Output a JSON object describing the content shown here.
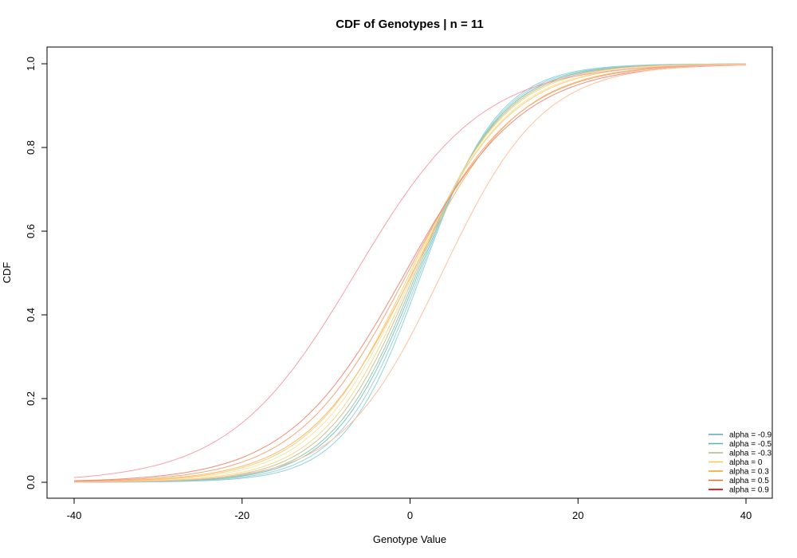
{
  "chart_data": {
    "type": "line",
    "title": "CDF of Genotypes | n = 11",
    "xlabel": "Genotype Value",
    "ylabel": "CDF",
    "xlim": [
      -40,
      40
    ],
    "ylim": [
      0,
      1
    ],
    "x_ticks": [
      "-40",
      "-20",
      "0",
      "20",
      "40"
    ],
    "y_ticks": [
      "0.0",
      "0.2",
      "0.4",
      "0.6",
      "0.8",
      "1.0"
    ],
    "x_tick_values": [
      -40,
      -20,
      0,
      20,
      40
    ],
    "y_tick_values": [
      0,
      0.2,
      0.4,
      0.6,
      0.8,
      1.0
    ],
    "grid": false,
    "legend_position": "bottom-right",
    "legend": [
      {
        "label": "alpha = -0.9",
        "color": "#5fa3c6"
      },
      {
        "label": "alpha = -0.5",
        "color": "#5fb3a5"
      },
      {
        "label": "alpha = -0.3",
        "color": "#a8b88c"
      },
      {
        "label": "alpha = 0",
        "color": "#f2c94c"
      },
      {
        "label": "alpha = 0.3",
        "color": "#eea21b"
      },
      {
        "label": "alpha = 0.5",
        "color": "#e56b1f"
      },
      {
        "label": "alpha = 0.9",
        "color": "#e8282b"
      }
    ],
    "series": [
      {
        "color": "#8ed3dd",
        "mu": 1.4,
        "s": 4.6
      },
      {
        "color": "#9ecfe0",
        "mu": 1.2,
        "s": 4.8
      },
      {
        "color": "#7fc4c0",
        "mu": 1.0,
        "s": 5.0
      },
      {
        "color": "#96c9a8",
        "mu": 0.8,
        "s": 5.1
      },
      {
        "color": "#c7c19a",
        "mu": 0.6,
        "s": 5.3
      },
      {
        "color": "#f5d98c",
        "mu": 0.4,
        "s": 5.5
      },
      {
        "color": "#f9e3a8",
        "mu": 0.2,
        "s": 5.8
      },
      {
        "color": "#f7cf7e",
        "mu": 0.0,
        "s": 6.0
      },
      {
        "color": "#f6bb6b",
        "mu": 0.3,
        "s": 6.3
      },
      {
        "color": "#f3a67a",
        "mu": -0.3,
        "s": 6.6
      },
      {
        "color": "#ef8b7a",
        "mu": -0.6,
        "s": 7.0
      },
      {
        "color": "#f4a0a8",
        "mu": -6.5,
        "s": 7.5
      },
      {
        "color": "#ffc09a",
        "mu": 3.8,
        "s": 6.0
      }
    ]
  }
}
